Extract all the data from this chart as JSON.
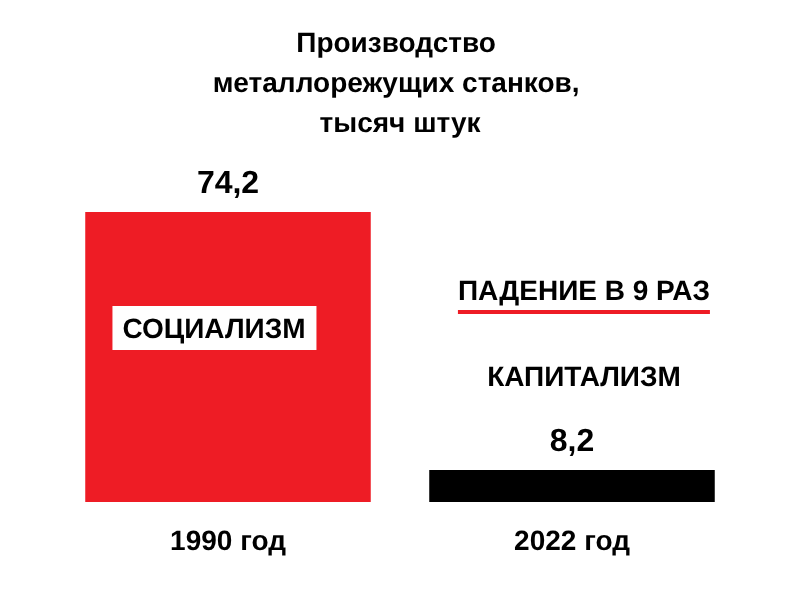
{
  "chart_data": {
    "type": "bar",
    "title": "Производство металлорежущих станков, тысяч штук",
    "categories": [
      "1990 год",
      "2022 год"
    ],
    "values": [
      74.2,
      8.2
    ],
    "colors": [
      "#ee1c25",
      "#000000"
    ],
    "value_labels": [
      "74,2",
      "8,2"
    ],
    "annotations": [
      "СОЦИАЛИЗМ",
      "ПАДЕНИЕ В 9 РАЗ",
      "КАПИТАЛИЗМ"
    ]
  }
}
